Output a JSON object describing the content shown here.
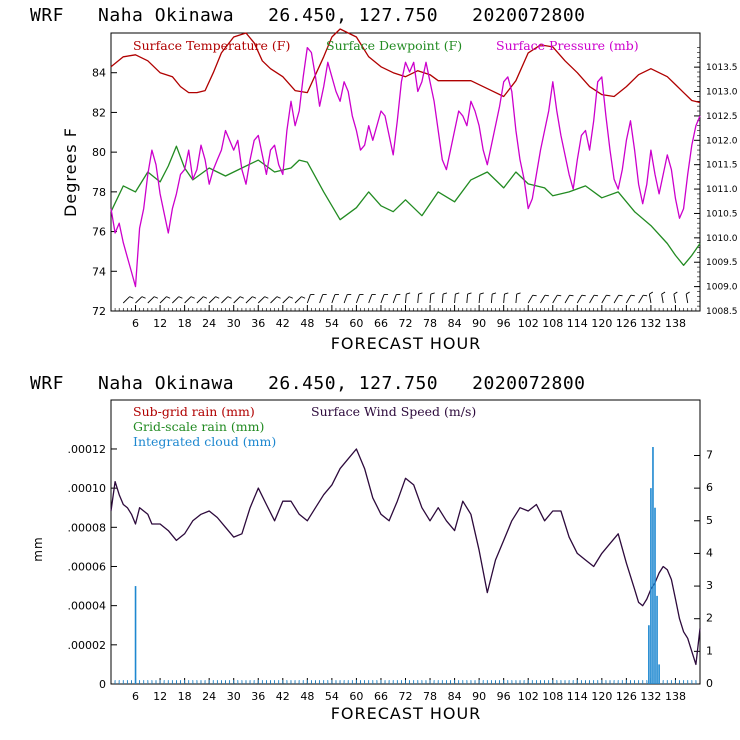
{
  "colors": {
    "temp": "#b00000",
    "dew": "#228b22",
    "press": "#cc00cc",
    "wind": "#2d0a3c",
    "cloud": "#1e88d0",
    "subgrid": "#b00000",
    "gridscale": "#228b22"
  },
  "chart_data": [
    {
      "type": "line",
      "title": "WRF   Naha Okinawa   26.450, 127.750   2020072800",
      "xlabel": "FORECAST HOUR",
      "ylabel": "Degrees F",
      "xlim": [
        0,
        144
      ],
      "ylim": [
        72,
        86
      ],
      "yticks": [
        "72",
        "74",
        "76",
        "78",
        "80",
        "82",
        "84"
      ],
      "xticks": [
        "6",
        "12",
        "18",
        "24",
        "30",
        "36",
        "42",
        "48",
        "54",
        "60",
        "66",
        "72",
        "78",
        "84",
        "90",
        "96",
        "102",
        "108",
        "114",
        "120",
        "126",
        "132",
        "138"
      ],
      "y2lim": [
        1008.5,
        1014.2
      ],
      "y2ticks": [
        "1008.5",
        "1009.0",
        "1009.5",
        "1010.0",
        "1010.5",
        "1011.0",
        "1011.5",
        "1012.0",
        "1012.5",
        "1013.0",
        "1013.5"
      ],
      "legend": [
        "Surface Temperature (F)",
        "Surface Dewpoint (F)",
        "Surface Pressure (mb)"
      ],
      "series": [
        {
          "name": "Surface Temperature (F)",
          "axis": "left",
          "x": [
            0,
            3,
            6,
            9,
            12,
            15,
            17,
            19,
            21,
            23,
            25,
            27,
            30,
            33,
            35,
            37,
            39,
            42,
            45,
            48,
            52,
            54,
            56,
            60,
            63,
            66,
            69,
            72,
            75,
            78,
            80,
            84,
            88,
            93,
            96,
            99,
            102,
            105,
            108,
            111,
            114,
            117,
            120,
            123,
            126,
            129,
            132,
            136,
            138,
            140,
            142,
            144
          ],
          "values": [
            84.3,
            84.8,
            84.9,
            84.6,
            84.0,
            83.8,
            83.3,
            83.0,
            83.0,
            83.1,
            84.0,
            85.0,
            85.8,
            86.0,
            85.5,
            84.6,
            84.2,
            83.8,
            83.1,
            83.0,
            84.8,
            85.8,
            86.2,
            85.8,
            84.8,
            84.3,
            84.0,
            83.8,
            84.1,
            83.9,
            83.6,
            83.6,
            83.6,
            83.1,
            82.8,
            83.6,
            85.0,
            85.4,
            85.3,
            84.6,
            84.0,
            83.3,
            82.9,
            82.8,
            83.3,
            83.9,
            84.2,
            83.8,
            83.4,
            83.0,
            82.6,
            82.5
          ]
        },
        {
          "name": "Surface Dewpoint (F)",
          "axis": "left",
          "x": [
            0,
            3,
            6,
            9,
            12,
            14,
            16,
            18,
            20,
            24,
            28,
            32,
            36,
            40,
            44,
            46,
            48,
            52,
            56,
            60,
            63,
            66,
            69,
            72,
            76,
            80,
            84,
            88,
            92,
            96,
            99,
            102,
            106,
            108,
            112,
            116,
            120,
            124,
            128,
            132,
            136,
            138,
            140,
            142,
            144
          ],
          "values": [
            77.0,
            78.3,
            78.0,
            79.0,
            78.5,
            79.3,
            80.3,
            79.2,
            78.6,
            79.2,
            78.8,
            79.2,
            79.6,
            79.0,
            79.2,
            79.6,
            79.5,
            78.0,
            76.6,
            77.2,
            78.0,
            77.3,
            77.0,
            77.6,
            76.8,
            78.0,
            77.5,
            78.6,
            79.0,
            78.2,
            79.0,
            78.4,
            78.2,
            77.8,
            78.0,
            78.3,
            77.7,
            78.0,
            77.0,
            76.3,
            75.4,
            74.8,
            74.3,
            74.8,
            75.4
          ]
        },
        {
          "name": "Surface Pressure (mb)",
          "axis": "right",
          "x": [
            0,
            1,
            2,
            3,
            4,
            5,
            6,
            7,
            8,
            9,
            10,
            11,
            12,
            13,
            14,
            15,
            16,
            17,
            18,
            19,
            20,
            21,
            22,
            23,
            24,
            25,
            26,
            27,
            28,
            29,
            30,
            31,
            32,
            33,
            34,
            35,
            36,
            37,
            38,
            39,
            40,
            41,
            42,
            43,
            44,
            45,
            46,
            47,
            48,
            49,
            50,
            51,
            52,
            53,
            54,
            55,
            56,
            57,
            58,
            59,
            60,
            61,
            62,
            63,
            64,
            65,
            66,
            67,
            68,
            69,
            70,
            71,
            72,
            73,
            74,
            75,
            76,
            77,
            78,
            79,
            80,
            81,
            82,
            83,
            84,
            85,
            86,
            87,
            88,
            89,
            90,
            91,
            92,
            93,
            94,
            95,
            96,
            97,
            98,
            99,
            100,
            101,
            102,
            103,
            104,
            105,
            106,
            107,
            108,
            109,
            110,
            111,
            112,
            113,
            114,
            115,
            116,
            117,
            118,
            119,
            120,
            121,
            122,
            123,
            124,
            125,
            126,
            127,
            128,
            129,
            130,
            131,
            132,
            133,
            134,
            135,
            136,
            137,
            138,
            139,
            140,
            141,
            142,
            143,
            144
          ],
          "values": [
            1010.6,
            1010.1,
            1010.3,
            1009.9,
            1009.6,
            1009.3,
            1009.0,
            1010.2,
            1010.6,
            1011.3,
            1011.8,
            1011.5,
            1010.9,
            1010.5,
            1010.1,
            1010.6,
            1010.9,
            1011.3,
            1011.4,
            1011.8,
            1011.2,
            1011.4,
            1011.9,
            1011.6,
            1011.1,
            1011.4,
            1011.6,
            1011.8,
            1012.2,
            1012.0,
            1011.8,
            1012.0,
            1011.4,
            1011.1,
            1011.6,
            1012.0,
            1012.1,
            1011.7,
            1011.3,
            1011.8,
            1011.9,
            1011.5,
            1011.3,
            1012.2,
            1012.8,
            1012.3,
            1012.6,
            1013.3,
            1013.9,
            1013.8,
            1013.3,
            1012.7,
            1013.1,
            1013.6,
            1013.3,
            1013.0,
            1012.8,
            1013.2,
            1013.0,
            1012.5,
            1012.2,
            1011.8,
            1011.9,
            1012.3,
            1012.0,
            1012.3,
            1012.6,
            1012.5,
            1012.1,
            1011.7,
            1012.4,
            1013.2,
            1013.6,
            1013.4,
            1013.6,
            1013.0,
            1013.2,
            1013.6,
            1013.2,
            1012.8,
            1012.2,
            1011.6,
            1011.4,
            1011.8,
            1012.2,
            1012.6,
            1012.5,
            1012.3,
            1012.8,
            1012.6,
            1012.3,
            1011.8,
            1011.5,
            1011.9,
            1012.3,
            1012.7,
            1013.2,
            1013.3,
            1013.0,
            1012.2,
            1011.6,
            1011.2,
            1010.6,
            1010.8,
            1011.3,
            1011.8,
            1012.2,
            1012.6,
            1013.2,
            1012.6,
            1012.1,
            1011.7,
            1011.3,
            1011.0,
            1011.6,
            1012.1,
            1012.2,
            1011.8,
            1012.4,
            1013.2,
            1013.3,
            1012.5,
            1011.8,
            1011.2,
            1011.0,
            1011.4,
            1012.0,
            1012.4,
            1011.8,
            1011.1,
            1010.7,
            1011.1,
            1011.8,
            1011.3,
            1010.9,
            1011.3,
            1011.7,
            1011.4,
            1010.8,
            1010.4,
            1010.6,
            1011.3,
            1011.9,
            1012.3,
            1012.5
          ]
        }
      ],
      "wind_barbs": "row of wind barbs along the bottom edge"
    },
    {
      "type": "line",
      "title": "WRF   Naha Okinawa   26.450, 127.750   2020072800",
      "xlabel": "FORECAST HOUR",
      "ylabel": "mm",
      "xlim": [
        0,
        144
      ],
      "ylim": [
        0,
        0.000145
      ],
      "yticks": [
        "0",
        ".00002",
        ".00004",
        ".00006",
        ".00008",
        ".00010",
        ".00012"
      ],
      "xticks": [
        "6",
        "12",
        "18",
        "24",
        "30",
        "36",
        "42",
        "48",
        "54",
        "60",
        "66",
        "72",
        "78",
        "84",
        "90",
        "96",
        "102",
        "108",
        "114",
        "120",
        "126",
        "132",
        "138"
      ],
      "y2lim": [
        0,
        8.7
      ],
      "y2ticks": [
        "0",
        "1",
        "2",
        "3",
        "4",
        "5",
        "6",
        "7"
      ],
      "legend": [
        "Sub-grid rain (mm)",
        "Grid-scale rain (mm)",
        "Integrated cloud (mm)",
        "Surface Wind Speed (m/s)"
      ],
      "series": [
        {
          "name": "Surface Wind Speed (m/s)",
          "axis": "right",
          "x": [
            0,
            1,
            2,
            3,
            4,
            5,
            6,
            7,
            8,
            9,
            10,
            12,
            14,
            16,
            18,
            20,
            22,
            24,
            26,
            28,
            30,
            32,
            34,
            36,
            38,
            40,
            42,
            44,
            46,
            48,
            50,
            52,
            54,
            56,
            58,
            60,
            62,
            64,
            66,
            68,
            70,
            72,
            74,
            76,
            78,
            80,
            82,
            84,
            86,
            88,
            90,
            92,
            94,
            96,
            98,
            100,
            102,
            104,
            106,
            108,
            110,
            112,
            114,
            116,
            118,
            120,
            122,
            124,
            126,
            128,
            129,
            130,
            131,
            132,
            133,
            134,
            135,
            136,
            137,
            138,
            139,
            140,
            141,
            142,
            143,
            144
          ],
          "values": [
            5.3,
            6.2,
            5.8,
            5.5,
            5.4,
            5.2,
            4.9,
            5.4,
            5.3,
            5.2,
            4.9,
            4.9,
            4.7,
            4.4,
            4.6,
            5.0,
            5.2,
            5.3,
            5.1,
            4.8,
            4.5,
            4.6,
            5.4,
            6.0,
            5.5,
            5.0,
            5.6,
            5.6,
            5.2,
            5.0,
            5.4,
            5.8,
            6.1,
            6.6,
            6.9,
            7.2,
            6.6,
            5.7,
            5.2,
            5.0,
            5.6,
            6.3,
            6.1,
            5.4,
            5.0,
            5.4,
            5.0,
            4.7,
            5.6,
            5.2,
            4.1,
            2.8,
            3.8,
            4.4,
            5.0,
            5.4,
            5.3,
            5.5,
            5.0,
            5.3,
            5.3,
            4.5,
            4.0,
            3.8,
            3.6,
            4.0,
            4.3,
            4.6,
            3.7,
            2.9,
            2.5,
            2.4,
            2.6,
            2.9,
            3.1,
            3.4,
            3.6,
            3.5,
            3.2,
            2.6,
            2.0,
            1.6,
            1.4,
            1.0,
            0.6,
            1.7
          ]
        },
        {
          "name": "Integrated cloud (mm)",
          "axis": "left",
          "bars": [
            [
              6.0,
              5e-05
            ],
            [
              131.5,
              3e-05
            ],
            [
              132.0,
              0.0001
            ],
            [
              132.5,
              0.000121
            ],
            [
              133.0,
              9e-05
            ],
            [
              133.5,
              4.5e-05
            ],
            [
              134.0,
              1e-05
            ]
          ]
        }
      ]
    }
  ]
}
